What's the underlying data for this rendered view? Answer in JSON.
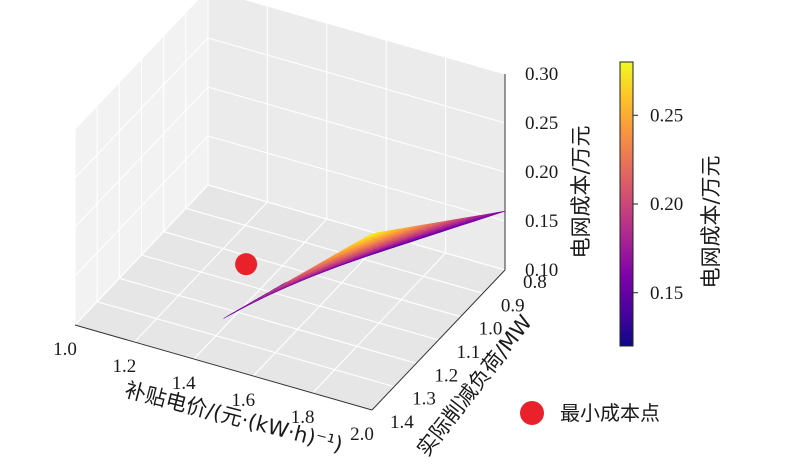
{
  "chart_data": {
    "type": "surface3d",
    "title": "",
    "x_axis": {
      "label": "补贴电价/(元·(kW·h)⁻¹)",
      "range": [
        1.0,
        2.0
      ],
      "ticks": [
        "1.0",
        "1.2",
        "1.4",
        "1.6",
        "1.8",
        "2.0"
      ]
    },
    "y_axis": {
      "label": "实际削减负荷/MW",
      "range": [
        0.8,
        1.4
      ],
      "ticks": [
        "0.8",
        "0.9",
        "1.0",
        "1.1",
        "1.2",
        "1.3",
        "1.4"
      ]
    },
    "z_axis": {
      "label": "电网成本/万元",
      "range": [
        0.1,
        0.3
      ],
      "ticks": [
        "0.10",
        "0.15",
        "0.20",
        "0.25",
        "0.30"
      ]
    },
    "surface": {
      "description": "feasible region surface",
      "corners": [
        {
          "price": 1.5,
          "load": 1.4,
          "cost": 0.15
        },
        {
          "price": 1.5,
          "load": 1.12,
          "cost": 0.12
        },
        {
          "price": 2.0,
          "load": 0.8,
          "cost": 0.16
        },
        {
          "price": 2.0,
          "load": 1.4,
          "cost": 0.28
        }
      ]
    },
    "min_point": {
      "price": 1.3,
      "load": 1.03,
      "cost": 0.1
    },
    "colorbar": {
      "label": "电网成本/万元",
      "range": [
        0.12,
        0.28
      ],
      "ticks": [
        "0.15",
        "0.20",
        "0.25"
      ],
      "colors": [
        "#0d0887",
        "#4c02a1",
        "#7e03a8",
        "#a92395",
        "#cc4778",
        "#e56b5d",
        "#f89441",
        "#fdc328",
        "#f0f921"
      ]
    },
    "legend": {
      "label": "最小成本点",
      "position": "bottom-right",
      "marker_color": "#e8212a"
    }
  }
}
